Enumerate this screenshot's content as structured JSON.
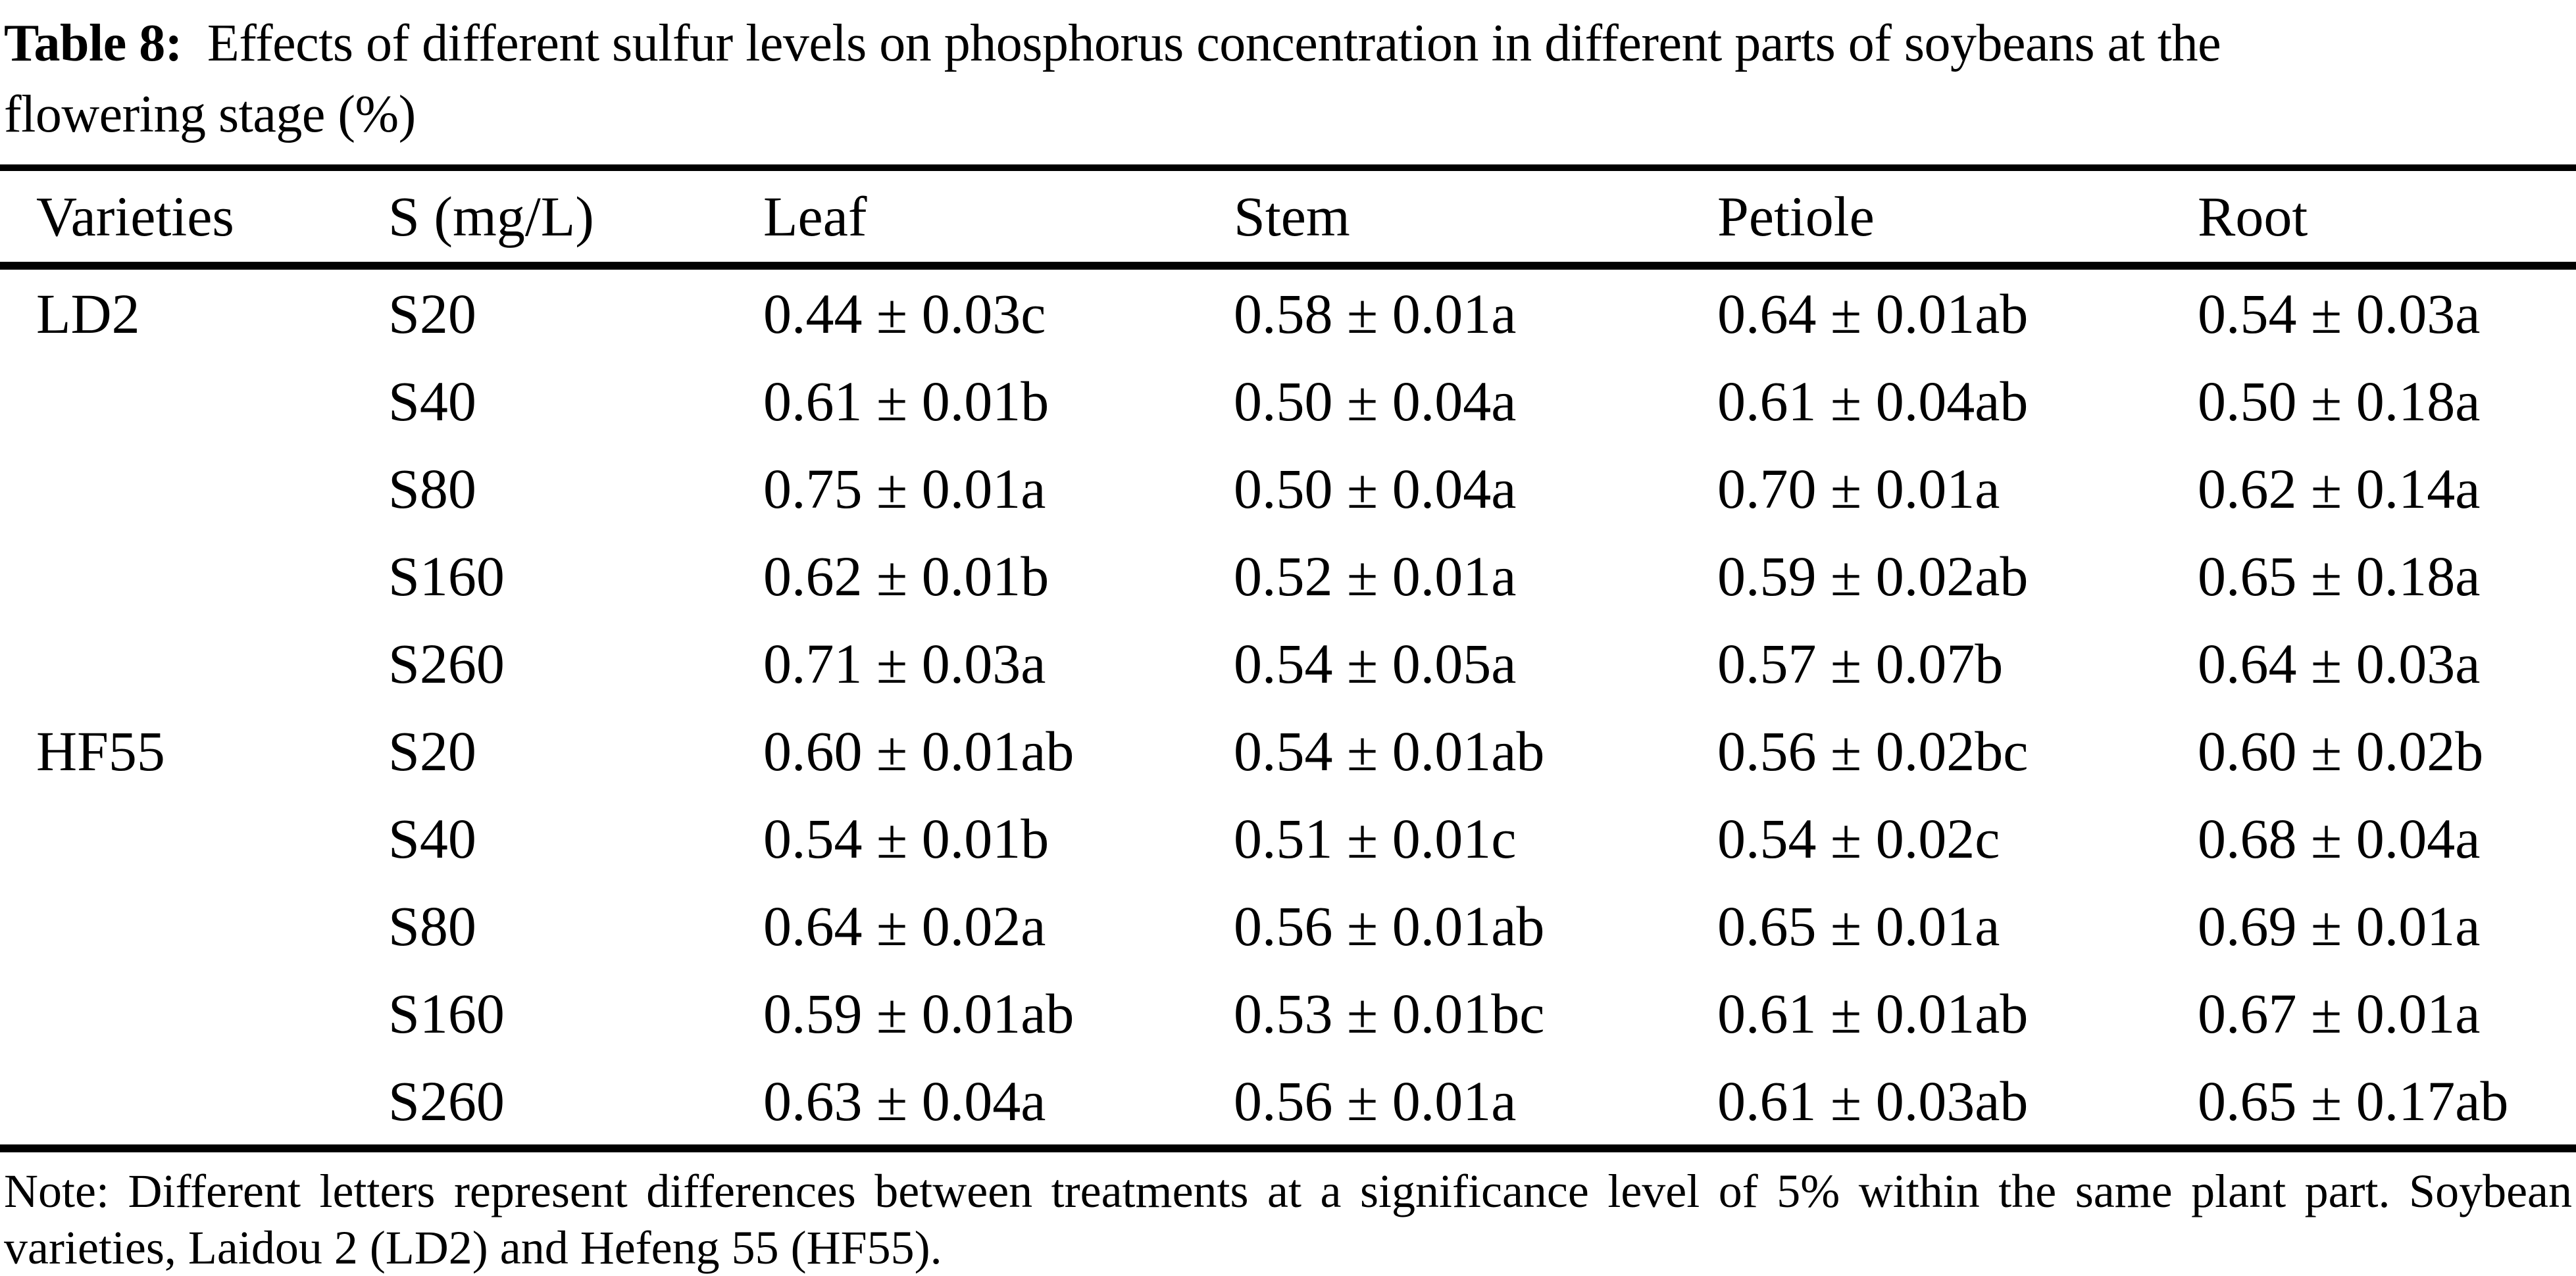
{
  "caption": {
    "label": "Table 8:",
    "line1": "Effects of different sulfur levels on phosphorus concentration in different parts of soybeans at the",
    "line2": "flowering stage (%)"
  },
  "table": {
    "columns": [
      "Varieties",
      "S (mg/L)",
      "Leaf",
      "Stem",
      "Petiole",
      "Root"
    ],
    "rows": [
      {
        "variety": "LD2",
        "s": "S20",
        "leaf": "0.44 ± 0.03c",
        "stem": "0.58 ± 0.01a",
        "petiole": "0.64 ± 0.01ab",
        "root": "0.54 ± 0.03a"
      },
      {
        "variety": "",
        "s": "S40",
        "leaf": "0.61 ± 0.01b",
        "stem": "0.50 ± 0.04a",
        "petiole": "0.61 ± 0.04ab",
        "root": "0.50 ± 0.18a"
      },
      {
        "variety": "",
        "s": "S80",
        "leaf": "0.75 ± 0.01a",
        "stem": "0.50 ± 0.04a",
        "petiole": "0.70 ± 0.01a",
        "root": "0.62 ± 0.14a"
      },
      {
        "variety": "",
        "s": "S160",
        "leaf": "0.62 ± 0.01b",
        "stem": "0.52 ± 0.01a",
        "petiole": "0.59 ± 0.02ab",
        "root": "0.65 ± 0.18a"
      },
      {
        "variety": "",
        "s": "S260",
        "leaf": "0.71 ± 0.03a",
        "stem": "0.54 ± 0.05a",
        "petiole": "0.57 ± 0.07b",
        "root": "0.64 ± 0.03a"
      },
      {
        "variety": "HF55",
        "s": "S20",
        "leaf": "0.60 ± 0.01ab",
        "stem": "0.54 ± 0.01ab",
        "petiole": "0.56 ± 0.02bc",
        "root": "0.60 ± 0.02b"
      },
      {
        "variety": "",
        "s": "S40",
        "leaf": "0.54 ± 0.01b",
        "stem": "0.51 ± 0.01c",
        "petiole": "0.54 ± 0.02c",
        "root": "0.68 ± 0.04a"
      },
      {
        "variety": "",
        "s": "S80",
        "leaf": "0.64 ± 0.02a",
        "stem": "0.56 ± 0.01ab",
        "petiole": "0.65 ± 0.01a",
        "root": "0.69 ± 0.01a"
      },
      {
        "variety": "",
        "s": "S160",
        "leaf": "0.59 ± 0.01ab",
        "stem": "0.53 ± 0.01bc",
        "petiole": "0.61 ± 0.01ab",
        "root": "0.67 ± 0.01a"
      },
      {
        "variety": "",
        "s": "S260",
        "leaf": "0.63 ± 0.04a",
        "stem": "0.56 ± 0.01a",
        "petiole": "0.61 ± 0.03ab",
        "root": "0.65 ± 0.17ab"
      }
    ]
  },
  "note": {
    "text": "Note: Different letters represent differences between treatments at a significance level of 5% within the same plant part. Soybean varieties, Laidou 2 (LD2) and Hefeng 55 (HF55)."
  },
  "colors": {
    "text": "#000000",
    "background": "#ffffff",
    "rule": "#000000"
  }
}
